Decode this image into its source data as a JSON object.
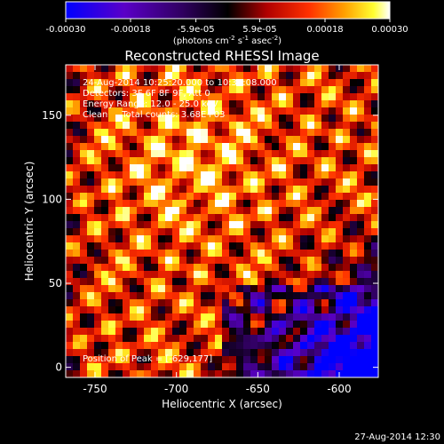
{
  "colorbar": {
    "ticks": [
      "-0.00030",
      "-0.00018",
      "-5.9e-05",
      "5.9e-05",
      "0.00018",
      "0.00030"
    ],
    "tick_values": [
      -0.0003,
      -0.00018,
      -5.9e-05,
      5.9e-05,
      0.00018,
      0.0003
    ],
    "range": [
      -0.0003,
      0.0003
    ],
    "units_main": "(photons cm",
    "units_sup1": "-2",
    "units_mid": " s",
    "units_sup2": "-1",
    "units_end": " asec",
    "units_sup3": "-2",
    "units_close": ")"
  },
  "chart_data": {
    "type": "heatmap",
    "title": "Reconstructed RHESSI Image",
    "xlabel": "Heliocentric X (arcsec)",
    "ylabel": "Heliocentric Y (arcsec)",
    "xlim": [
      -768,
      -576
    ],
    "ylim": [
      -6,
      180
    ],
    "xticks": [
      -750,
      -700,
      -650,
      -600
    ],
    "yticks": [
      0,
      50,
      100,
      150
    ],
    "annotations": [
      "24-Aug-2014 10:25:20.000 to 10:31:08.000",
      "Detectors: 3F 6F 8F 9F, Att 0",
      "Energy Range: 12.0 - 25.0 keV",
      "Clean     Total counts: 3.68E+03"
    ],
    "peak_label": "Position of Peak = [-629,177]",
    "peak": [
      -629,
      177
    ],
    "colormap": [
      "#0000ff",
      "#800080",
      "#000000",
      "#ff0000",
      "#ffa500",
      "#ffff00",
      "#ffffff"
    ],
    "grid": false
  },
  "footer": {
    "timestamp": "27-Aug-2014 12:30"
  }
}
